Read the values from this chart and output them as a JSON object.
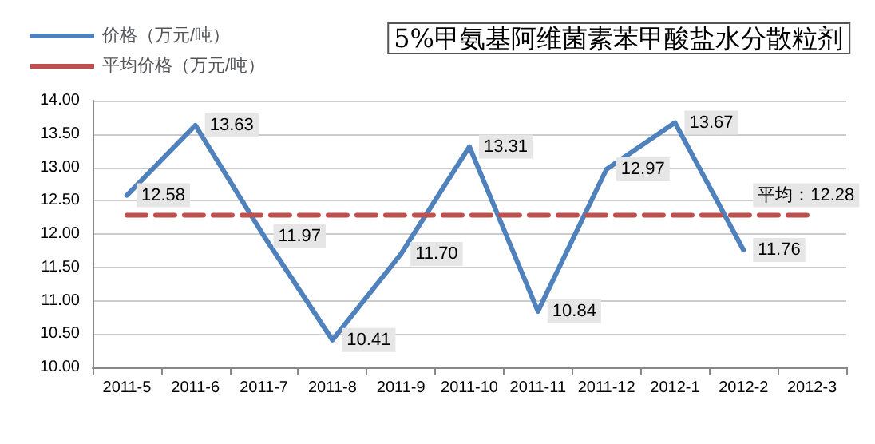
{
  "chart_data": {
    "type": "line",
    "title": "5%甲氨基阿维菌素苯甲酸盐水分散粒剂",
    "categories": [
      "2011-5",
      "2011-6",
      "2011-7",
      "2011-8",
      "2011-9",
      "2011-10",
      "2011-11",
      "2011-12",
      "2012-1",
      "2012-2",
      "2012-3"
    ],
    "series": [
      {
        "name": "价格（万元/吨）",
        "color": "#4f81bd",
        "values": [
          12.58,
          13.63,
          11.97,
          10.41,
          11.7,
          13.31,
          10.84,
          12.97,
          13.67,
          11.76,
          null
        ],
        "value_labels": [
          "12.58",
          "13.63",
          "11.97",
          "10.41",
          "11.70",
          "13.31",
          "10.84",
          "12.97",
          "13.67",
          "11.76",
          null
        ]
      },
      {
        "name": "平均价格（万元/吨）",
        "color": "#c0504d",
        "line_style": "dashed",
        "values": [
          12.28,
          12.28,
          12.28,
          12.28,
          12.28,
          12.28,
          12.28,
          12.28,
          12.28,
          12.28,
          12.28
        ]
      }
    ],
    "annotations": [
      {
        "text": "平均：12.28",
        "x": "2012-2",
        "y": 12.28
      }
    ],
    "ylim": [
      10,
      14
    ],
    "yticks": [
      {
        "value": 10,
        "label": "10.00"
      },
      {
        "value": 10.5,
        "label": "10.50"
      },
      {
        "value": 11,
        "label": "11.00"
      },
      {
        "value": 11.5,
        "label": "11.50"
      },
      {
        "value": 12,
        "label": "12.00"
      },
      {
        "value": 12.5,
        "label": "12.50"
      },
      {
        "value": 13,
        "label": "13.00"
      },
      {
        "value": 13.5,
        "label": "13.50"
      },
      {
        "value": 14,
        "label": "14.00"
      }
    ],
    "grid": "y",
    "legend": "top left",
    "marker": "none"
  }
}
